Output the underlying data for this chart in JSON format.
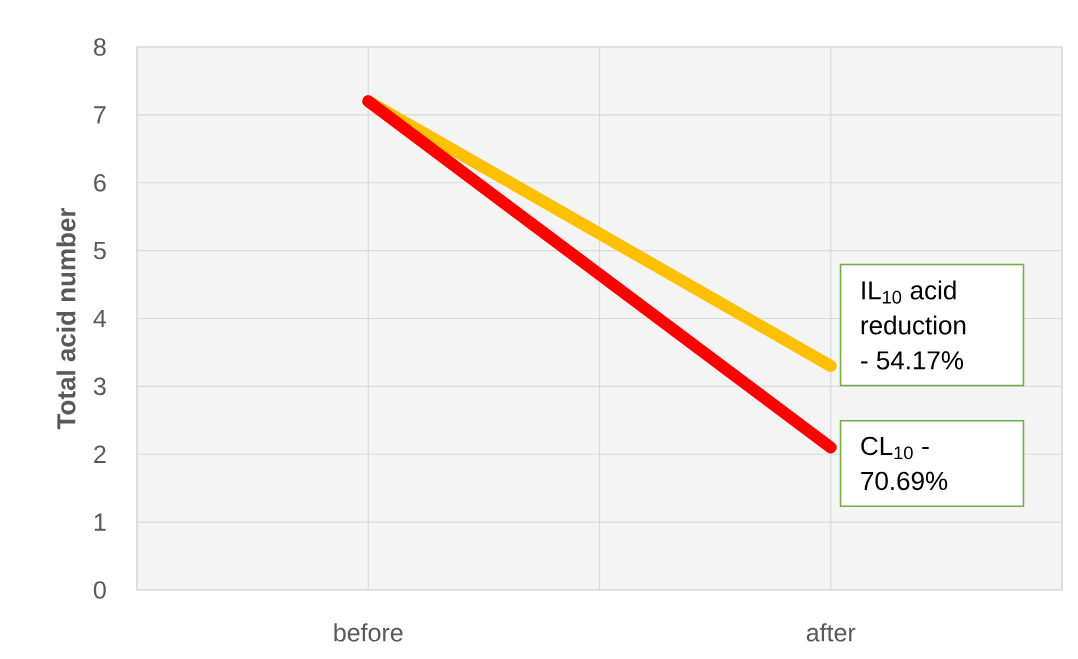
{
  "chart_data": {
    "type": "line",
    "ylabel": "Total acid number",
    "categories": [
      "before",
      "after"
    ],
    "series": [
      {
        "color": "#ffc000",
        "values": [
          7.2,
          3.3
        ]
      },
      {
        "color": "#ff0000",
        "values": [
          7.2,
          2.1
        ]
      }
    ],
    "ylim": [
      0,
      8
    ],
    "yticks": [
      0,
      1,
      2,
      3,
      4,
      5,
      6,
      7,
      8
    ],
    "grid": true,
    "annotations": [
      {
        "text": "IL$_{10}$ acid reduction - 54.17%",
        "x": "after",
        "y": 3.3
      },
      {
        "text": "CL$_{10}$ - 70.69%",
        "x": "after",
        "y": 2.1
      }
    ]
  }
}
